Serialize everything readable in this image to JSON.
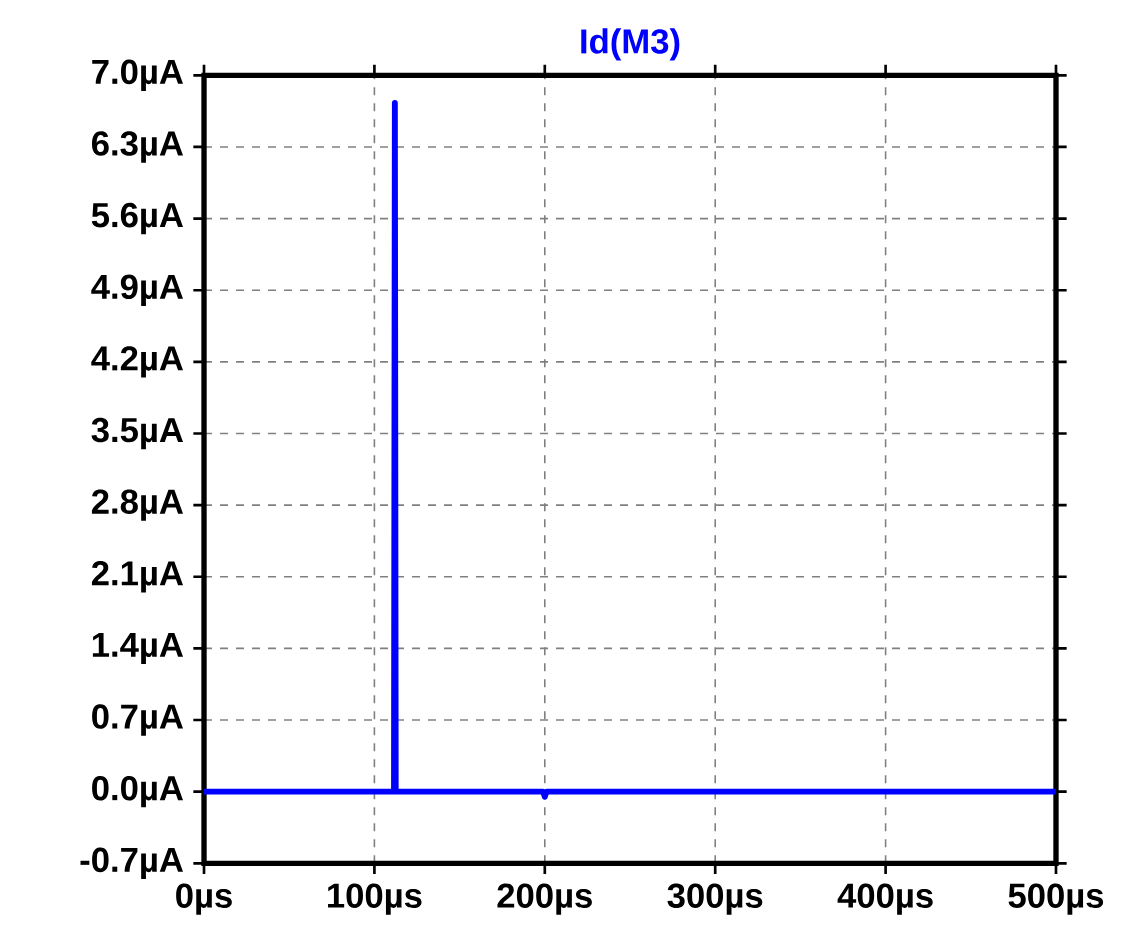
{
  "chart_data": {
    "type": "line",
    "title": "Id(M3)",
    "series": [
      {
        "color": "#0000ff",
        "x": [
          0,
          111.5,
          112,
          112.5,
          199,
          200,
          201,
          500
        ],
        "values": [
          0,
          0,
          6.73,
          0,
          0,
          -0.05,
          0,
          0
        ]
      }
    ],
    "xlim": [
      0,
      500
    ],
    "ylim": [
      -0.7,
      7.0
    ],
    "xticks": [
      {
        "value": 0,
        "label": "0µs"
      },
      {
        "value": 100,
        "label": "100µs"
      },
      {
        "value": 200,
        "label": "200µs"
      },
      {
        "value": 300,
        "label": "300µs"
      },
      {
        "value": 400,
        "label": "400µs"
      },
      {
        "value": 500,
        "label": "500µs"
      }
    ],
    "yticks": [
      {
        "value": -0.7,
        "label": "-0.7µA"
      },
      {
        "value": 0,
        "label": "0.0µA"
      },
      {
        "value": 0.7,
        "label": "0.7µA"
      },
      {
        "value": 1.4,
        "label": "1.4µA"
      },
      {
        "value": 2.1,
        "label": "2.1µA"
      },
      {
        "value": 2.8,
        "label": "2.8µA"
      },
      {
        "value": 3.5,
        "label": "3.5µA"
      },
      {
        "value": 4.2,
        "label": "4.2µA"
      },
      {
        "value": 4.9,
        "label": "4.9µA"
      },
      {
        "value": 5.6,
        "label": "5.6µA"
      },
      {
        "value": 6.3,
        "label": "6.3µA"
      },
      {
        "value": 7.0,
        "label": "7.0µA"
      }
    ],
    "grid": true,
    "line_style": "solid",
    "marker": "none"
  }
}
